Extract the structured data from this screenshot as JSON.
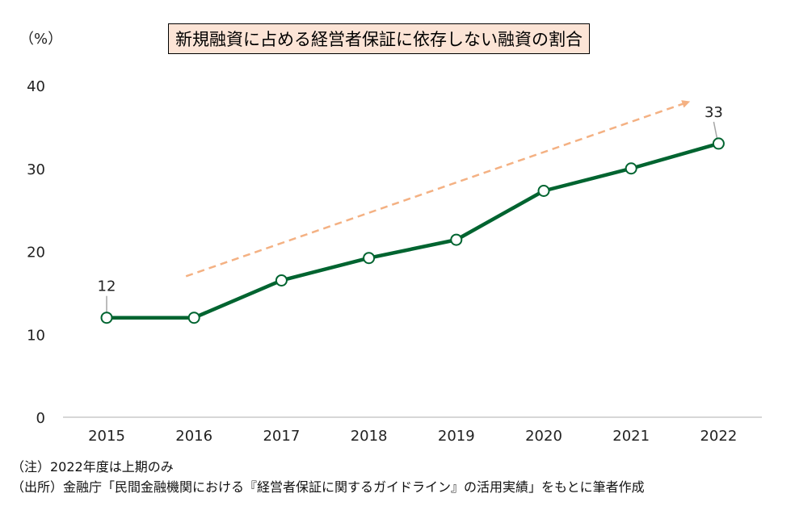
{
  "chart_data": {
    "type": "line",
    "title": "新規融資に占める経営者保証に依存しない融資の割合",
    "ylabel": "（%）",
    "categories": [
      "2015",
      "2016",
      "2017",
      "2018",
      "2019",
      "2020",
      "2021",
      "2022"
    ],
    "values": [
      12,
      12,
      16.5,
      19.2,
      21.4,
      27.3,
      30,
      33
    ],
    "ylim": [
      0,
      40
    ],
    "yticks": [
      "0",
      "10",
      "20",
      "30",
      "40"
    ],
    "data_labels": [
      {
        "category": "2015",
        "text": "12"
      },
      {
        "category": "2022",
        "text": "33"
      }
    ],
    "trend_arrow": {
      "from": [
        "2016",
        17
      ],
      "to": [
        "2022",
        38
      ],
      "color": "#f4b183",
      "style": "dashed"
    },
    "line_color": "#006430",
    "marker_fill": "#ffffff",
    "grid": false
  },
  "notes": {
    "note1": "（注）2022年度は上期のみ",
    "note2": "（出所）金融庁「民間金融機関における『経営者保証に関するガイドライン』の活用実績」をもとに筆者作成"
  }
}
